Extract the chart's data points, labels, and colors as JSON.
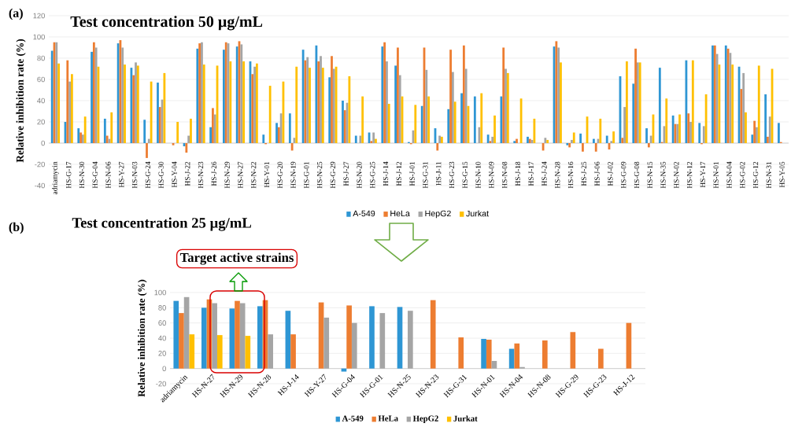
{
  "chart_data": [
    {
      "type": "bar",
      "title": "Test concentration 50 µg/mL",
      "ylabel": "Relative inhibition rate (%)",
      "categories": [
        "adriamycin",
        "HS-G-17",
        "HS-N-30",
        "HS-G-04",
        "HS-N-06",
        "HS-Y-27",
        "HS-N-03",
        "HS-G-24",
        "HS-G-30",
        "HS-Y-04",
        "HS-J-22",
        "HS-N-23",
        "HS-J-26",
        "HS-N-29",
        "HS-N-27",
        "HS-N-22",
        "HS-Y-01",
        "HS-G-20",
        "HS-N-19",
        "HS-G-01",
        "HS-N-25",
        "HS-G-29",
        "HS-J-27",
        "HS-N-20",
        "HS-G-25",
        "HS-J-14",
        "HS-J-12",
        "HS-J-01",
        "HS-G-31",
        "HS-J-11",
        "HS-G-23",
        "HS-G-15",
        "HS-N-10",
        "HS-N-09",
        "HS-N-08",
        "HS-J-18",
        "HS-J-17",
        "HS-J-24",
        "HS-N-28",
        "HS-N-16",
        "HS-J-25",
        "HS-J-06",
        "HS-J-02",
        "HS-G-09",
        "HS-G-08",
        "HS-N-15",
        "HS-N-35",
        "HS-N-02",
        "HS-N-12",
        "HS-Y-17",
        "HS-N-01",
        "HS-N-04",
        "HS-G-02",
        "HS-G-12",
        "HS-N-31",
        "HS-Y-05"
      ],
      "series": [
        {
          "name": "A-549",
          "color": "#2e96d4",
          "values": [
            87,
            20,
            14,
            86,
            23,
            94,
            71,
            22,
            57,
            null,
            -3,
            89,
            15,
            88,
            91,
            77,
            8,
            19,
            28,
            88,
            92,
            62,
            40,
            7,
            10,
            91,
            73,
            1,
            35,
            14,
            32,
            47,
            44,
            8,
            44,
            2,
            6,
            null,
            91,
            -2,
            9,
            4,
            7,
            63,
            56,
            14,
            71,
            26,
            78,
            19,
            92,
            92,
            72,
            8,
            46,
            19
          ]
        },
        {
          "name": "HeLa",
          "color": "#ed7d31",
          "values": [
            95,
            78,
            10,
            95,
            7,
            97,
            64,
            -14,
            34,
            -2,
            -9,
            94,
            33,
            95,
            96,
            65,
            -1,
            15,
            -7,
            78,
            77,
            82,
            31,
            null,
            2,
            95,
            90,
            -1,
            90,
            -7,
            88,
            92,
            null,
            2,
            90,
            4,
            4,
            -7,
            96,
            -4,
            -8,
            -8,
            -6,
            5,
            89,
            -4,
            1,
            18,
            28,
            -1,
            92,
            89,
            51,
            21,
            6,
            1
          ]
        },
        {
          "name": "HepG2",
          "color": "#a5a5a5",
          "values": [
            95,
            58,
            8,
            90,
            4,
            90,
            76,
            4,
            41,
            null,
            7,
            95,
            27,
            94,
            93,
            72,
            null,
            28,
            5,
            81,
            82,
            70,
            38,
            7,
            10,
            77,
            64,
            12,
            69,
            7,
            67,
            70,
            15,
            6,
            70,
            null,
            3,
            5,
            90,
            3,
            null,
            4,
            2,
            34,
            76,
            7,
            16,
            18,
            20,
            16,
            84,
            85,
            66,
            15,
            25,
            null
          ]
        },
        {
          "name": "Jurkat",
          "color": "#ffc000",
          "values": [
            75,
            65,
            25,
            72,
            29,
            74,
            73,
            58,
            66,
            20,
            23,
            74,
            73,
            77,
            77,
            75,
            54,
            58,
            72,
            71,
            71,
            72,
            63,
            44,
            4,
            37,
            44,
            36,
            44,
            6,
            39,
            35,
            47,
            26,
            66,
            42,
            23,
            3,
            76,
            10,
            25,
            23,
            11,
            77,
            76,
            27,
            42,
            27,
            78,
            46,
            74,
            74,
            29,
            73,
            70,
            null
          ]
        }
      ],
      "ylim": [
        -40,
        120
      ],
      "yticks": [
        -40,
        -20,
        0,
        20,
        40,
        60,
        80,
        100,
        120
      ],
      "grid": "y",
      "legend": "bottom",
      "annotations": [
        "(a)"
      ]
    },
    {
      "type": "bar",
      "title": "Test concentration 25 µg/mL",
      "ylabel": "Relative inhibition rate (%)",
      "categories": [
        "adriamycin",
        "HS-N-27",
        "HS-N-29",
        "HS-N-28",
        "HS-J-14",
        "HS-Y-27",
        "HS-G-04",
        "HS-G-01",
        "HS-N-25",
        "HS-N-23",
        "HS-G-31",
        "HS-N-01",
        "HS-N-04",
        "HS-N-08",
        "HS-G-29",
        "HS-G-23",
        "HS-J-12"
      ],
      "series": [
        {
          "name": "A-549",
          "color": "#2e96d4",
          "values": [
            89,
            80,
            79,
            82,
            76,
            null,
            -4,
            82,
            81,
            null,
            null,
            39,
            26,
            null,
            null,
            null,
            null
          ]
        },
        {
          "name": "HeLa",
          "color": "#ed7d31",
          "values": [
            73,
            91,
            89,
            90,
            45,
            87,
            83,
            null,
            null,
            90,
            41,
            38,
            33,
            37,
            48,
            26,
            60
          ]
        },
        {
          "name": "HepG2",
          "color": "#a5a5a5",
          "values": [
            94,
            86,
            86,
            45,
            null,
            67,
            60,
            73,
            76,
            null,
            null,
            10,
            2,
            null,
            null,
            null,
            null
          ]
        },
        {
          "name": "Jurkat",
          "color": "#ffc000",
          "values": [
            45,
            44,
            43,
            null,
            null,
            null,
            null,
            null,
            null,
            null,
            null,
            null,
            null,
            null,
            null,
            null,
            null
          ]
        }
      ],
      "ylim": [
        -20,
        100
      ],
      "yticks": [
        -20,
        0,
        20,
        40,
        60,
        80,
        100
      ],
      "grid": "y",
      "legend": "bottom",
      "annotations": [
        "(b)",
        "Target active strains"
      ]
    }
  ]
}
